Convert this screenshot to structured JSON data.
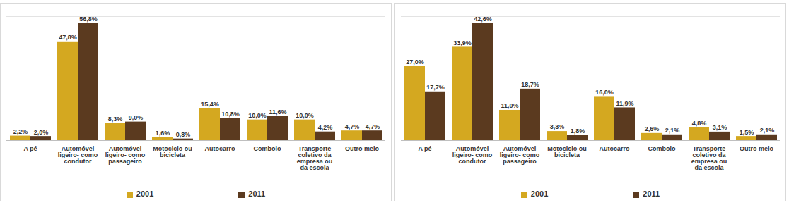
{
  "chart_data": [
    {
      "type": "bar",
      "categories": [
        "A pé",
        "Automóvel ligeiro- como condutor",
        "Automóvel ligeiro- como passageiro",
        "Motociclo ou bicicleta",
        "Autocarro",
        "Comboio",
        "Transporte coletivo da empresa ou da escola",
        "Outro meio"
      ],
      "series": [
        {
          "name": "2001",
          "color": "#d4a820",
          "values": [
            2.2,
            47.8,
            8.3,
            1.6,
            15.4,
            10.0,
            10.0,
            4.7
          ],
          "value_labels": [
            "2,2%",
            "47,8%",
            "8,3%",
            "1,6%",
            "15,4%",
            "10,0%",
            "10,0%",
            "4,7%"
          ]
        },
        {
          "name": "2011",
          "color": "#5b3a1f",
          "values": [
            2.0,
            56.8,
            9.0,
            0.8,
            10.8,
            11.6,
            4.2,
            4.7
          ],
          "value_labels": [
            "2,0%",
            "56,8%",
            "9,0%",
            "0,8%",
            "10,8%",
            "11,6%",
            "4,2%",
            "4,7%"
          ]
        }
      ],
      "ylim": [
        0,
        60
      ],
      "yticks": [],
      "data_labels": true,
      "tick_labels": "x",
      "legend": "bottom"
    },
    {
      "type": "bar",
      "categories": [
        "A pé",
        "Automóvel ligeiro- como condutor",
        "Automóvel ligeiro- como passageiro",
        "Motociclo ou bicicleta",
        "Autocarro",
        "Comboio",
        "Transporte coletivo da empresa ou da escola",
        "Outro meio"
      ],
      "series": [
        {
          "name": "2001",
          "color": "#d4a820",
          "values": [
            27.0,
            33.9,
            11.0,
            3.3,
            16.0,
            2.6,
            4.8,
            1.5
          ],
          "value_labels": [
            "27,0%",
            "33,9%",
            "11,0%",
            "3,3%",
            "16,0%",
            "2,6%",
            "4,8%",
            "1,5%"
          ]
        },
        {
          "name": "2011",
          "color": "#5b3a1f",
          "values": [
            17.7,
            42.6,
            18.7,
            1.8,
            11.9,
            2.1,
            3.1,
            2.1
          ],
          "value_labels": [
            "17,7%",
            "42,6%",
            "18,7%",
            "1,8%",
            "11,9%",
            "2,1%",
            "3,1%",
            "2,1%"
          ]
        }
      ],
      "ylim": [
        0,
        45
      ],
      "yticks": [],
      "data_labels": true,
      "tick_labels": "x",
      "legend": "bottom"
    }
  ]
}
